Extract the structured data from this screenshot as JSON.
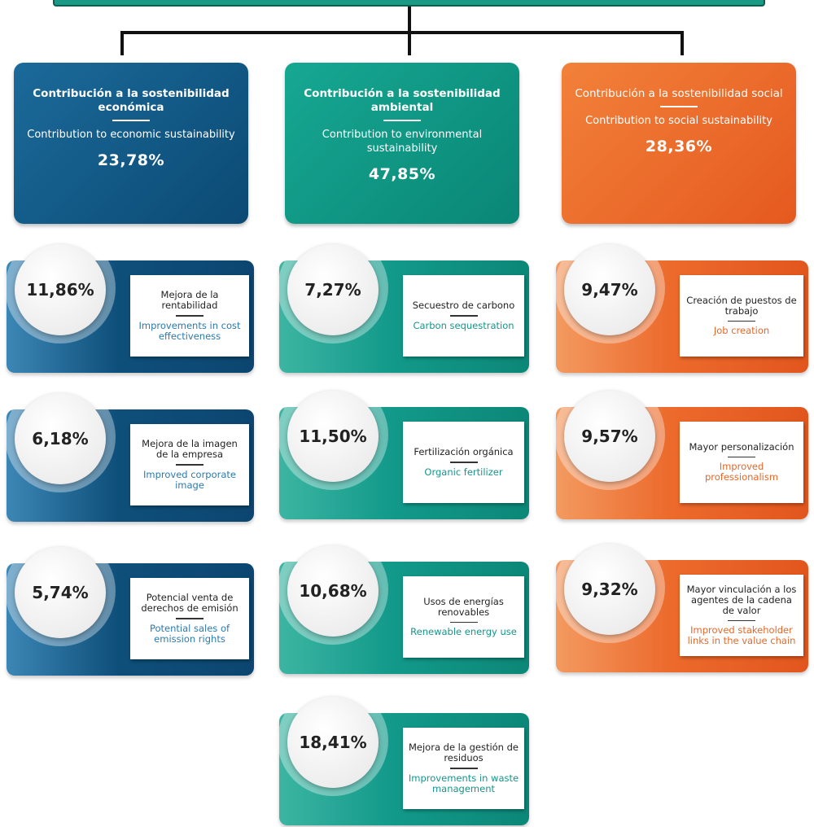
{
  "columns": [
    {
      "header": {
        "title_es": "Contribución a la sostenibilidad económica",
        "title_en": "Contribution to economic sustainability",
        "percent": "23,78%"
      },
      "items": [
        {
          "percent": "11,86%",
          "label_es": "Mejora de la rentabilidad",
          "label_en": "Improvements in cost effectiveness"
        },
        {
          "percent": "6,18%",
          "label_es": "Mejora de la imagen de la empresa",
          "label_en": "Improved corporate image"
        },
        {
          "percent": "5,74%",
          "label_es": "Potencial venta de derechos de emisión",
          "label_en": "Potential sales of emission rights"
        }
      ]
    },
    {
      "header": {
        "title_es": "Contribución a la sostenibilidad ambiental",
        "title_en": "Contribution to environmental sustainability",
        "percent": "47,85%"
      },
      "items": [
        {
          "percent": "7,27%",
          "label_es": "Secuestro de carbono",
          "label_en": "Carbon sequestration"
        },
        {
          "percent": "11,50%",
          "label_es": "Fertilización orgánica",
          "label_en": "Organic fertilizer"
        },
        {
          "percent": "10,68%",
          "label_es": "Usos de energías renovables",
          "label_en": "Renewable energy use"
        },
        {
          "percent": "18,41%",
          "label_es": "Mejora de la gestión de residuos",
          "label_en": "Improvements in waste management"
        }
      ]
    },
    {
      "header": {
        "title_es": "Contribución a la sostenibilidad social",
        "title_en": "Contribution to social sustainability",
        "percent": "28,36%"
      },
      "items": [
        {
          "percent": "9,47%",
          "label_es": "Creación de puestos de trabajo",
          "label_en": "Job creation"
        },
        {
          "percent": "9,57%",
          "label_es": "Mayor personalización",
          "label_en": "Improved professionalism"
        },
        {
          "percent": "9,32%",
          "label_es": "Mayor vinculación a los agentes de la cadena de valor",
          "label_en": "Improved stakeholder links in the value chain"
        }
      ]
    }
  ]
}
